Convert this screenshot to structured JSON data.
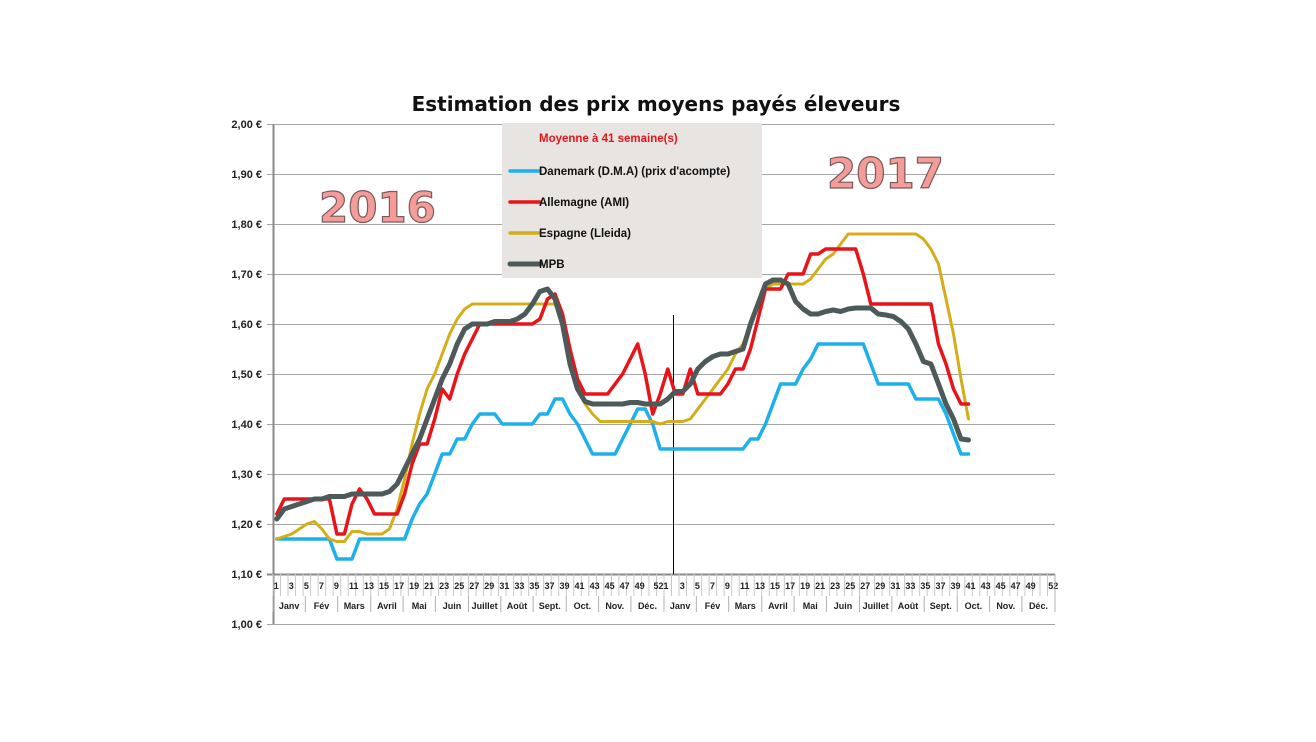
{
  "chart_data": {
    "type": "line",
    "title": "Estimation des prix moyens payés éleveurs",
    "legend_title": "Moyenne à  41 semaine(s)",
    "legend_position": "top-center",
    "annotations": [
      "2016",
      "2017"
    ],
    "ylim": [
      1.0,
      2.0
    ],
    "y_ticks": [
      "1,00 €",
      "1,10 €",
      "1,20 €",
      "1,30 €",
      "1,40 €",
      "1,50 €",
      "1,60 €",
      "1,70 €",
      "1,80 €",
      "1,90 €",
      "2,00 €"
    ],
    "grid": true,
    "x_tick_labels_2016": [
      "1",
      "3",
      "5",
      "7",
      "9",
      "11",
      "13",
      "15",
      "17",
      "19",
      "21",
      "23",
      "25",
      "27",
      "29",
      "31",
      "33",
      "35",
      "37",
      "39",
      "41",
      "43",
      "45",
      "47",
      "49",
      "521"
    ],
    "x_tick_labels_2017": [
      "3",
      "5",
      "7",
      "9",
      "11",
      "13",
      "15",
      "17",
      "19",
      "21",
      "23",
      "25",
      "27",
      "29",
      "31",
      "33",
      "35",
      "37",
      "39",
      "41",
      "43",
      "45",
      "47",
      "49",
      "52"
    ],
    "months": [
      "Janv",
      "Fév",
      "Mars",
      "Avril",
      "Mai",
      "Juin",
      "Juillet",
      "Août",
      "Sept.",
      "Oct.",
      "Nov.",
      "Déc."
    ],
    "years": [
      2016,
      2017
    ],
    "series": [
      {
        "name": "Danemark (D.M.A) (prix d'acompte)",
        "color": "#1eb0ea",
        "values_2016": [
          1.17,
          1.17,
          1.17,
          1.17,
          1.17,
          1.17,
          1.17,
          1.17,
          1.13,
          1.13,
          1.13,
          1.17,
          1.17,
          1.17,
          1.17,
          1.17,
          1.17,
          1.17,
          1.21,
          1.24,
          1.26,
          1.3,
          1.34,
          1.34,
          1.37,
          1.37,
          1.4,
          1.42,
          1.42,
          1.42,
          1.4,
          1.4,
          1.4,
          1.4,
          1.4,
          1.42,
          1.42,
          1.45,
          1.45,
          1.42,
          1.4,
          1.37,
          1.34,
          1.34,
          1.34,
          1.34,
          1.37,
          1.4,
          1.43,
          1.43,
          1.4,
          1.35
        ],
        "values_2017": [
          1.35,
          1.35,
          1.35,
          1.35,
          1.35,
          1.35,
          1.35,
          1.35,
          1.35,
          1.35,
          1.35,
          1.37,
          1.37,
          1.4,
          1.44,
          1.48,
          1.48,
          1.48,
          1.51,
          1.53,
          1.56,
          1.56,
          1.56,
          1.56,
          1.56,
          1.56,
          1.56,
          1.52,
          1.48,
          1.48,
          1.48,
          1.48,
          1.48,
          1.45,
          1.45,
          1.45,
          1.45,
          1.42,
          1.38,
          1.34,
          1.34
        ]
      },
      {
        "name": "Allemagne (AMI)",
        "color": "#e8141a",
        "values_2016": [
          1.22,
          1.25,
          1.25,
          1.25,
          1.25,
          1.25,
          1.25,
          1.25,
          1.18,
          1.18,
          1.24,
          1.27,
          1.25,
          1.22,
          1.22,
          1.22,
          1.22,
          1.26,
          1.32,
          1.36,
          1.36,
          1.41,
          1.47,
          1.45,
          1.5,
          1.54,
          1.57,
          1.6,
          1.6,
          1.6,
          1.6,
          1.6,
          1.6,
          1.6,
          1.6,
          1.61,
          1.65,
          1.66,
          1.62,
          1.55,
          1.49,
          1.46,
          1.46,
          1.46,
          1.46,
          1.48,
          1.5,
          1.53,
          1.56,
          1.5,
          1.42,
          1.46
        ],
        "values_2017": [
          1.51,
          1.46,
          1.46,
          1.51,
          1.46,
          1.46,
          1.46,
          1.46,
          1.48,
          1.51,
          1.51,
          1.55,
          1.61,
          1.67,
          1.67,
          1.67,
          1.7,
          1.7,
          1.7,
          1.74,
          1.74,
          1.75,
          1.75,
          1.75,
          1.75,
          1.75,
          1.7,
          1.64,
          1.64,
          1.64,
          1.64,
          1.64,
          1.64,
          1.64,
          1.64,
          1.64,
          1.56,
          1.52,
          1.47,
          1.44,
          1.44
        ]
      },
      {
        "name": "Espagne (Lleida)",
        "color": "#d4ad1a",
        "values_2016": [
          1.17,
          1.175,
          1.18,
          1.19,
          1.2,
          1.205,
          1.19,
          1.17,
          1.165,
          1.165,
          1.185,
          1.185,
          1.18,
          1.18,
          1.18,
          1.19,
          1.23,
          1.29,
          1.36,
          1.42,
          1.47,
          1.5,
          1.54,
          1.58,
          1.61,
          1.63,
          1.64,
          1.64,
          1.64,
          1.64,
          1.64,
          1.64,
          1.64,
          1.64,
          1.64,
          1.64,
          1.64,
          1.64,
          1.6,
          1.54,
          1.49,
          1.44,
          1.42,
          1.405,
          1.405,
          1.405,
          1.405,
          1.405,
          1.405,
          1.405,
          1.405,
          1.4
        ],
        "values_2017": [
          1.405,
          1.405,
          1.405,
          1.41,
          1.43,
          1.45,
          1.47,
          1.49,
          1.51,
          1.54,
          1.56,
          1.6,
          1.64,
          1.67,
          1.68,
          1.68,
          1.68,
          1.68,
          1.68,
          1.69,
          1.71,
          1.73,
          1.74,
          1.76,
          1.78,
          1.78,
          1.78,
          1.78,
          1.78,
          1.78,
          1.78,
          1.78,
          1.78,
          1.78,
          1.77,
          1.75,
          1.72,
          1.65,
          1.58,
          1.49,
          1.41
        ]
      },
      {
        "name": "MPB",
        "color": "#4d5a5a",
        "values_2016": [
          1.21,
          1.23,
          1.235,
          1.24,
          1.245,
          1.25,
          1.25,
          1.255,
          1.255,
          1.255,
          1.26,
          1.26,
          1.26,
          1.26,
          1.26,
          1.265,
          1.28,
          1.31,
          1.34,
          1.37,
          1.41,
          1.45,
          1.49,
          1.52,
          1.56,
          1.59,
          1.6,
          1.6,
          1.6,
          1.605,
          1.605,
          1.605,
          1.61,
          1.62,
          1.64,
          1.665,
          1.67,
          1.65,
          1.6,
          1.52,
          1.47,
          1.445,
          1.44,
          1.44,
          1.44,
          1.44,
          1.44,
          1.443,
          1.443,
          1.44,
          1.44,
          1.44
        ],
        "values_2017": [
          1.45,
          1.465,
          1.465,
          1.48,
          1.51,
          1.525,
          1.535,
          1.54,
          1.54,
          1.545,
          1.55,
          1.6,
          1.64,
          1.68,
          1.688,
          1.688,
          1.68,
          1.645,
          1.63,
          1.62,
          1.62,
          1.625,
          1.628,
          1.625,
          1.63,
          1.632,
          1.632,
          1.632,
          1.62,
          1.618,
          1.615,
          1.605,
          1.59,
          1.56,
          1.525,
          1.52,
          1.48,
          1.44,
          1.41,
          1.37,
          1.368
        ]
      }
    ]
  }
}
